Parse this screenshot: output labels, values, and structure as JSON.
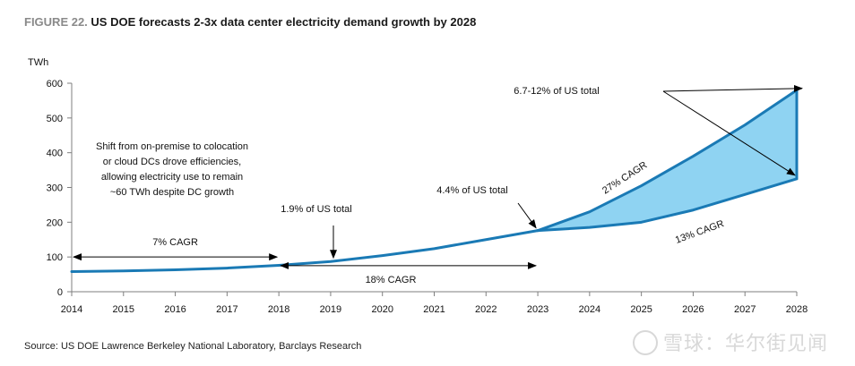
{
  "figure": {
    "number": "FIGURE 22.",
    "title": "US DOE forecasts 2-3x data center electricity demand growth by 2028"
  },
  "source": "Source: US DOE Lawrence Berkeley National Laboratory, Barclays Research",
  "watermark": "雪球：华尔街见闻",
  "colors": {
    "line": "#1a7ab5",
    "fill": "#8fd3f2",
    "arrow": "#000000",
    "axis": "#7f7f7f"
  },
  "chart_data": {
    "type": "area",
    "ylabel": "TWh",
    "ylim": [
      0,
      600
    ],
    "yticks": [
      0,
      100,
      200,
      300,
      400,
      500,
      600
    ],
    "x": [
      "2014",
      "2015",
      "2016",
      "2017",
      "2018",
      "2019",
      "2020",
      "2021",
      "2022",
      "2023",
      "2024",
      "2025",
      "2026",
      "2027",
      "2028"
    ],
    "series": [
      {
        "values": [
          58,
          60,
          63,
          68,
          76,
          87,
          104,
          124,
          150,
          176,
          null,
          null,
          null,
          null,
          null
        ]
      },
      {
        "values": [
          null,
          null,
          null,
          null,
          null,
          null,
          null,
          null,
          null,
          176,
          230,
          305,
          390,
          480,
          580
        ]
      },
      {
        "values": [
          null,
          null,
          null,
          null,
          null,
          null,
          null,
          null,
          null,
          176,
          185,
          200,
          235,
          280,
          325
        ]
      }
    ],
    "annotations": [
      {
        "id": "cagr7",
        "text": "7% CAGR"
      },
      {
        "id": "cagr18",
        "text": "18% CAGR"
      },
      {
        "id": "cagr27",
        "text": "27% CAGR"
      },
      {
        "id": "cagr13",
        "text": "13% CAGR"
      },
      {
        "id": "shift",
        "lines": [
          "Shift from on-premise to colocation",
          "or cloud DCs drove efficiencies,",
          "allowing electricity use to remain",
          "~60 TWh despite DC growth"
        ]
      },
      {
        "id": "pct19",
        "text": "1.9% of US total"
      },
      {
        "id": "pct44",
        "text": "4.4% of US total"
      },
      {
        "id": "pct67",
        "text": "6.7-12% of US total"
      }
    ]
  }
}
